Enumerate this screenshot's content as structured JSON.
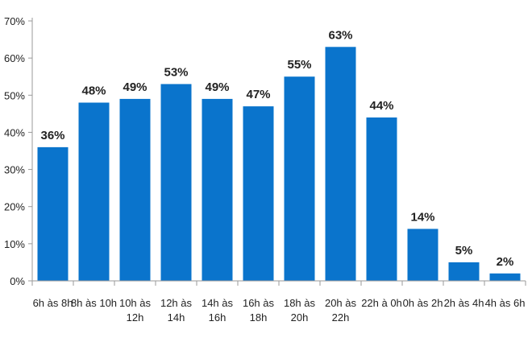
{
  "chart_data": {
    "type": "bar",
    "categories": [
      [
        "6h às 8h"
      ],
      [
        "8h às 10h"
      ],
      [
        "10h às",
        "12h"
      ],
      [
        "12h às",
        "14h"
      ],
      [
        "14h às",
        "16h"
      ],
      [
        "16h às",
        "18h"
      ],
      [
        "18h às",
        "20h"
      ],
      [
        "20h às",
        "22h"
      ],
      [
        "22h à 0h"
      ],
      [
        "0h às 2h"
      ],
      [
        "2h às 4h"
      ],
      [
        "4h às 6h"
      ]
    ],
    "values": [
      36,
      48,
      49,
      53,
      49,
      47,
      55,
      63,
      44,
      14,
      5,
      2
    ],
    "data_labels": [
      "36%",
      "48%",
      "49%",
      "53%",
      "49%",
      "47%",
      "55%",
      "63%",
      "44%",
      "14%",
      "5%",
      "2%"
    ],
    "yticks": [
      0,
      10,
      20,
      30,
      40,
      50,
      60,
      70
    ],
    "ytick_labels": [
      "0%",
      "10%",
      "20%",
      "30%",
      "40%",
      "50%",
      "60%",
      "70%"
    ],
    "ylim": [
      0,
      70
    ],
    "title": "",
    "xlabel": "",
    "ylabel": "",
    "grid": false,
    "legend": "none",
    "bar_color": "#0A74CC",
    "axis_color": "#9a9a9a"
  }
}
